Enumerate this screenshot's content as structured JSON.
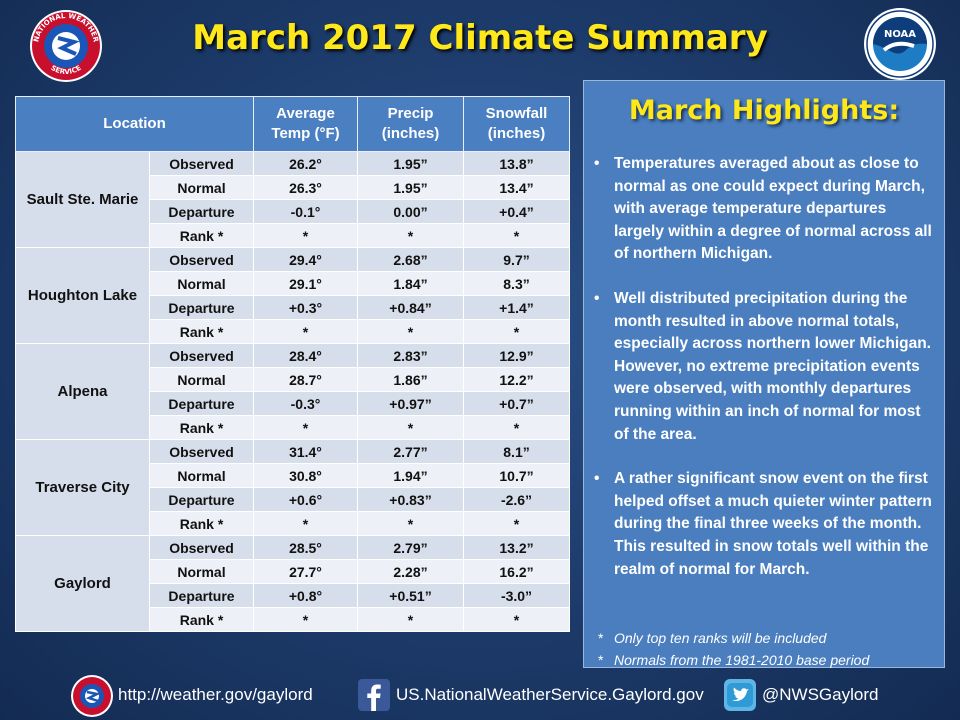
{
  "title": "March 2017 Climate Summary",
  "headers": {
    "location": "Location",
    "temp_line1": "Average",
    "temp_line2": "Temp (°F)",
    "precip_line1": "Precip",
    "precip_line2": "(inches)",
    "snow_line1": "Snowfall",
    "snow_line2": "(inches)"
  },
  "locations": [
    {
      "name": "Sault Ste. Marie",
      "rows": [
        {
          "label": "Observed",
          "temp": "26.2°",
          "precip": "1.95”",
          "snow": "13.8”"
        },
        {
          "label": "Normal",
          "temp": "26.3°",
          "precip": "1.95”",
          "snow": "13.4”"
        },
        {
          "label": "Departure",
          "temp": "-0.1°",
          "precip": "0.00”",
          "snow": "+0.4”"
        },
        {
          "label": "Rank *",
          "temp": "*",
          "precip": "*",
          "snow": "*"
        }
      ]
    },
    {
      "name": "Houghton Lake",
      "rows": [
        {
          "label": "Observed",
          "temp": "29.4°",
          "precip": "2.68”",
          "snow": "9.7”"
        },
        {
          "label": "Normal",
          "temp": "29.1°",
          "precip": "1.84”",
          "snow": "8.3”"
        },
        {
          "label": "Departure",
          "temp": "+0.3°",
          "precip": "+0.84”",
          "snow": "+1.4”"
        },
        {
          "label": "Rank *",
          "temp": "*",
          "precip": "*",
          "snow": "*"
        }
      ]
    },
    {
      "name": "Alpena",
      "rows": [
        {
          "label": "Observed",
          "temp": "28.4°",
          "precip": "2.83”",
          "snow": "12.9”"
        },
        {
          "label": "Normal",
          "temp": "28.7°",
          "precip": "1.86”",
          "snow": "12.2”"
        },
        {
          "label": "Departure",
          "temp": "-0.3°",
          "precip": "+0.97”",
          "snow": "+0.7”"
        },
        {
          "label": "Rank *",
          "temp": "*",
          "precip": "*",
          "snow": "*"
        }
      ]
    },
    {
      "name": "Traverse City",
      "rows": [
        {
          "label": "Observed",
          "temp": "31.4°",
          "precip": "2.77”",
          "snow": "8.1”"
        },
        {
          "label": "Normal",
          "temp": "30.8°",
          "precip": "1.94”",
          "snow": "10.7”"
        },
        {
          "label": "Departure",
          "temp": "+0.6°",
          "precip": "+0.83”",
          "snow": "-2.6”"
        },
        {
          "label": "Rank *",
          "temp": "*",
          "precip": "*",
          "snow": "*"
        }
      ]
    },
    {
      "name": "Gaylord",
      "rows": [
        {
          "label": "Observed",
          "temp": "28.5°",
          "precip": "2.79”",
          "snow": "13.2”"
        },
        {
          "label": "Normal",
          "temp": "27.7°",
          "precip": "2.28”",
          "snow": "16.2”"
        },
        {
          "label": "Departure",
          "temp": "+0.8°",
          "precip": "+0.51”",
          "snow": "-3.0”"
        },
        {
          "label": "Rank *",
          "temp": "*",
          "precip": "*",
          "snow": "*"
        }
      ]
    }
  ],
  "highlights": {
    "heading": "March Highlights:",
    "bullets": [
      "Temperatures averaged about as close to normal as one could expect during March, with average temperature departures largely within a degree of normal across all of northern Michigan.",
      "Well distributed precipitation during the month resulted in above normal totals, especially across northern lower Michigan.   However, no extreme precipitation events were observed, with monthly departures running within an inch of normal for most of the area.",
      "A rather significant snow event on the first helped offset a much quieter winter pattern during the final three weeks of the month.  This resulted in snow totals well within the realm of normal for March."
    ],
    "notes": [
      "Only top ten ranks will be included",
      "Normals from the 1981-2010 base period"
    ]
  },
  "footer": {
    "website": "http://weather.gov/gaylord",
    "facebook": "US.NationalWeatherService.Gaylord.gov",
    "twitter": "@NWSGaylord"
  },
  "logos": {
    "nws_text_top": "NATIONAL WEATHER",
    "nws_text_bottom": "SERVICE",
    "noaa": "NOAA"
  },
  "colors": {
    "title": "#ffe81a",
    "header_bg": "#4a7fc1",
    "panel_bg": "#4a7ebe",
    "row_dark": "#d7deeb",
    "row_light": "#edf0f6"
  }
}
